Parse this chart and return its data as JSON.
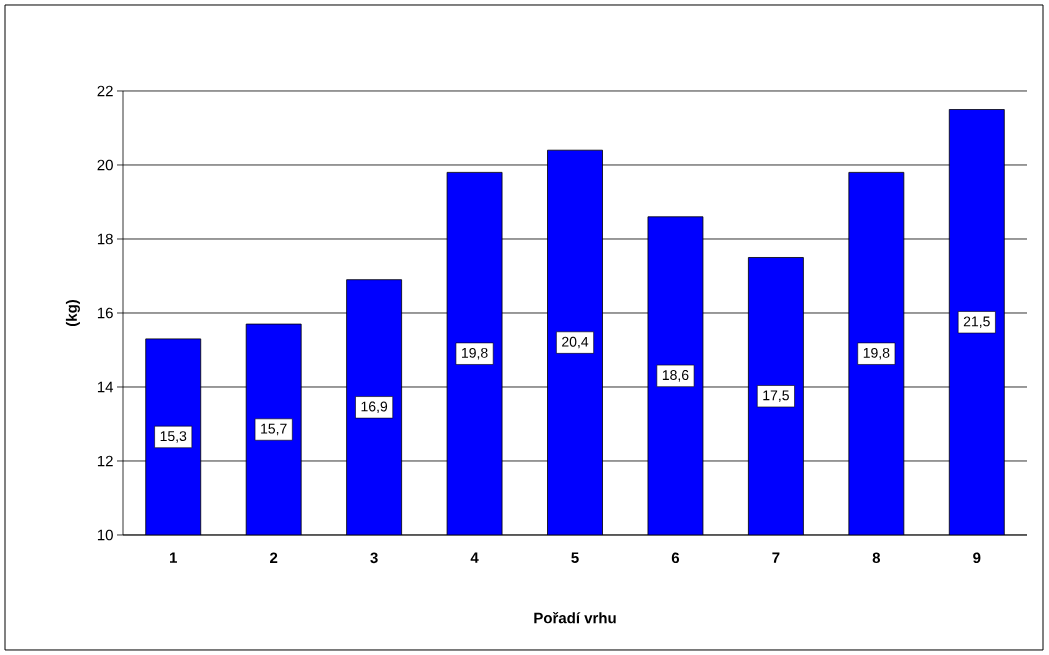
{
  "chart_data": {
    "type": "bar",
    "xlabel": "Pořadí vrhu",
    "ylabel": "(kg)",
    "categories": [
      "1",
      "2",
      "3",
      "4",
      "5",
      "6",
      "7",
      "8",
      "9"
    ],
    "values": [
      15.3,
      15.7,
      16.9,
      19.8,
      20.4,
      18.6,
      17.5,
      19.8,
      21.5
    ],
    "value_labels": [
      "15,3",
      "15,7",
      "16,9",
      "19,8",
      "20,4",
      "18,6",
      "17,5",
      "19,8",
      "21,5"
    ],
    "color": "#0000ff",
    "ylim": [
      10,
      22
    ],
    "yticks": [
      10,
      12,
      14,
      16,
      18,
      20,
      22
    ],
    "grid": "y"
  }
}
